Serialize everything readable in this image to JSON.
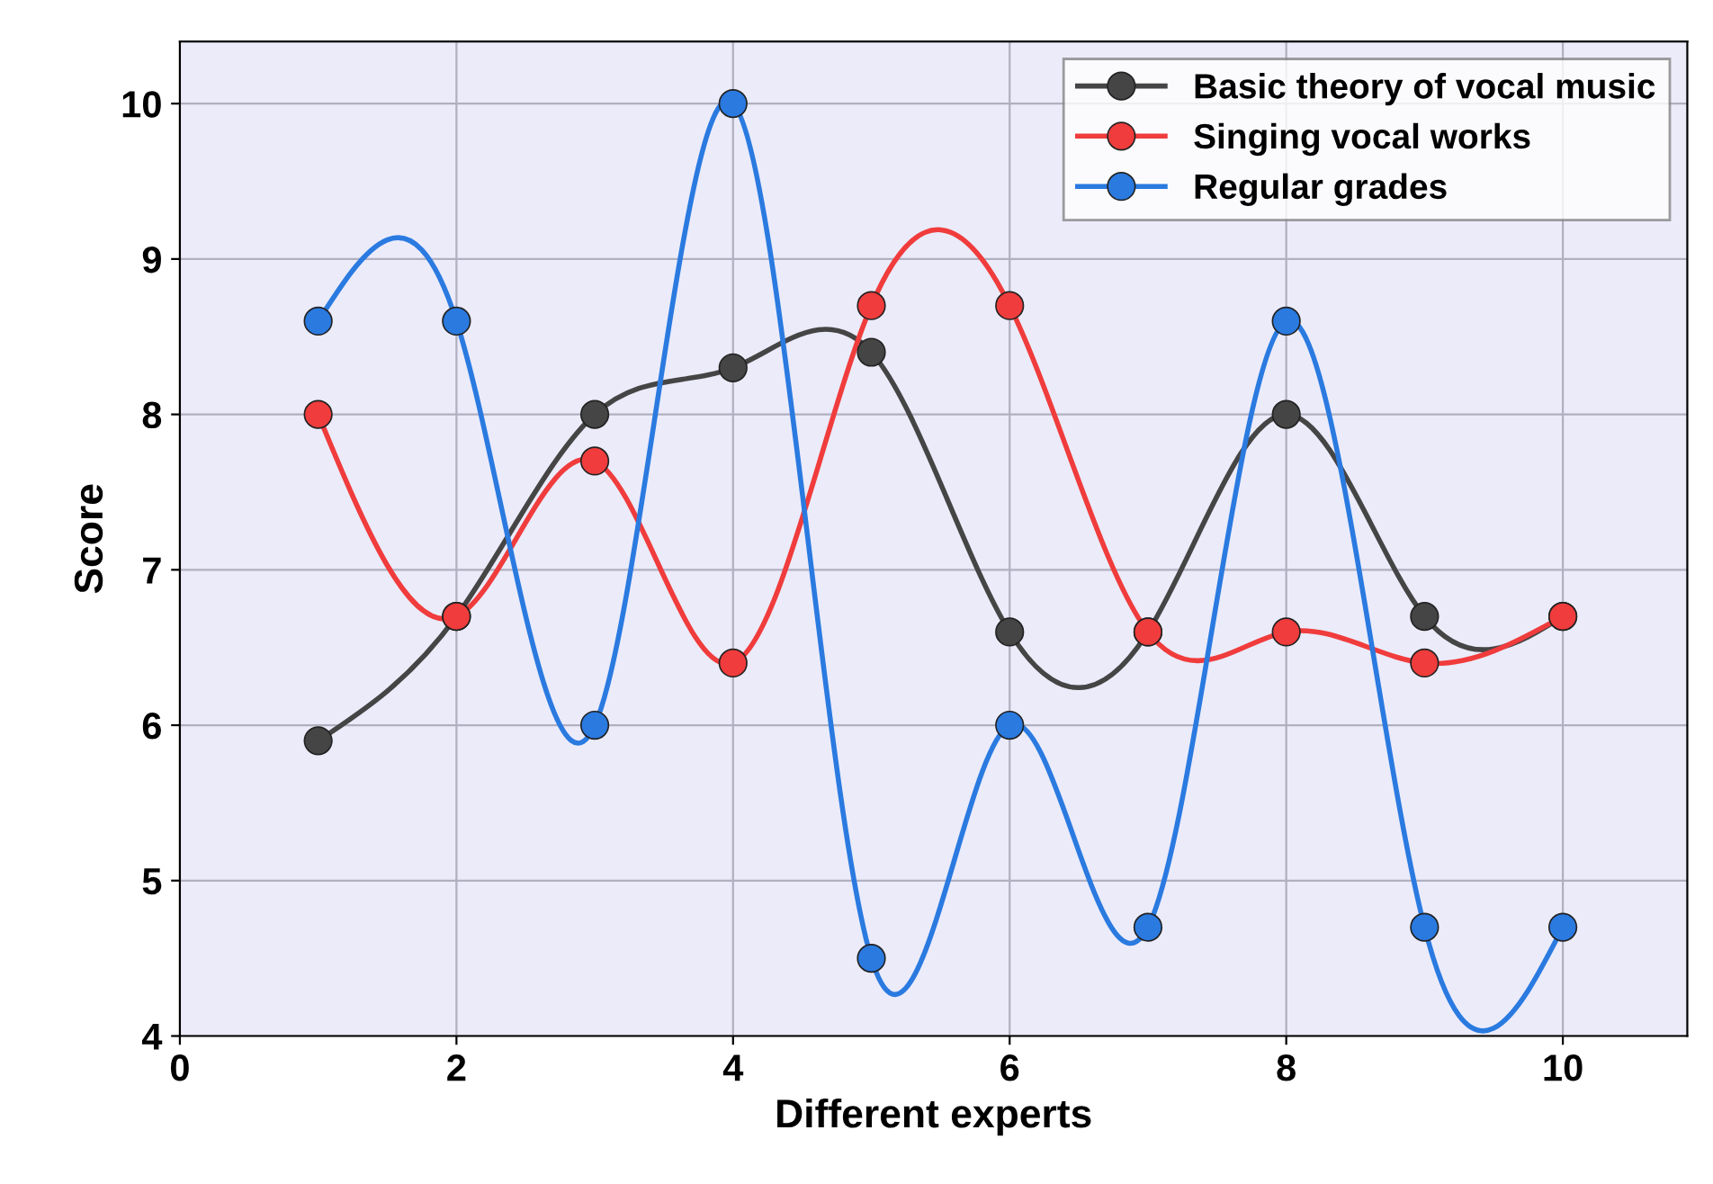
{
  "chart_data": {
    "type": "line",
    "xlabel": "Different experts",
    "ylabel": "Score",
    "x": [
      1,
      2,
      3,
      4,
      5,
      6,
      7,
      8,
      9,
      10
    ],
    "series": [
      {
        "name": "Basic theory of vocal music",
        "color": "#454545",
        "values": [
          5.9,
          6.7,
          8.0,
          8.3,
          8.4,
          6.6,
          6.6,
          8.0,
          6.7,
          6.7
        ]
      },
      {
        "name": "Singing vocal works",
        "color": "#f03c3c",
        "values": [
          8.0,
          6.7,
          7.7,
          6.4,
          8.7,
          8.7,
          6.6,
          6.6,
          6.4,
          6.7
        ]
      },
      {
        "name": "Regular grades",
        "color": "#2a7ae0",
        "values": [
          8.6,
          8.6,
          6.0,
          10.0,
          4.5,
          6.0,
          4.7,
          8.6,
          4.7,
          4.7
        ]
      }
    ],
    "xlim": [
      0,
      10.9
    ],
    "xticks": [
      0,
      2,
      4,
      6,
      8,
      10
    ],
    "ylim": [
      4,
      10.4
    ],
    "yticks": [
      4,
      5,
      6,
      7,
      8,
      9,
      10
    ],
    "grid": true,
    "legend": "top right",
    "marker": "circle",
    "line_style": "solid"
  }
}
